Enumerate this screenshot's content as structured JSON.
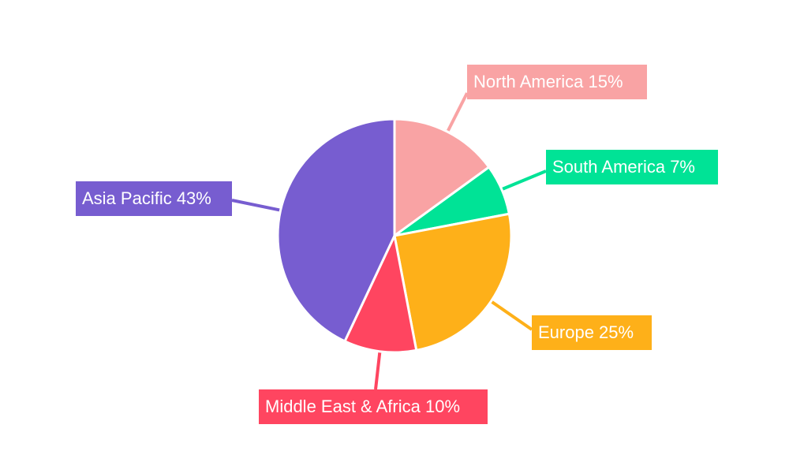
{
  "chart_data": {
    "type": "pie",
    "categories": [
      "North America",
      "South America",
      "Europe",
      "Middle East & Africa",
      "Asia Pacific"
    ],
    "values": [
      15,
      7,
      25,
      10,
      43
    ],
    "labels": [
      "North America 15%",
      "South America 7%",
      "Europe 25%",
      "Middle East & Africa 10%",
      "Asia Pacific 43%"
    ],
    "colors": [
      "#f9a3a4",
      "#00e396",
      "#feb019",
      "#ff4560",
      "#775dd0"
    ],
    "start_angle": "12 o'clock",
    "direction": "clockwise",
    "legend": "none"
  }
}
